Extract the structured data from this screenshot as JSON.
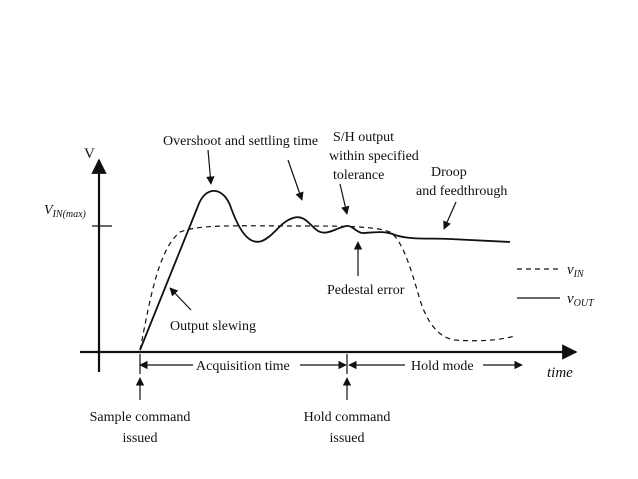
{
  "axes": {
    "y_label": "V",
    "x_label": "time",
    "vin_max_main": "V",
    "vin_max_sub": "IN(max)"
  },
  "annotations": {
    "overshoot": "Overshoot and settling time",
    "sh_line1": "S/H output",
    "sh_line2": "within specified",
    "sh_line3": "tolerance",
    "droop_line1": "Droop",
    "droop_line2": "and feedthrough",
    "pedestal": "Pedestal error",
    "slewing": "Output slewing"
  },
  "intervals": {
    "acquisition": "Acquisition time",
    "hold": "Hold mode"
  },
  "events": {
    "sample_line1": "Sample command",
    "sample_line2": "issued",
    "hold_line1": "Hold command",
    "hold_line2": "issued"
  },
  "legend": {
    "vin_main": "v",
    "vin_sub": "IN",
    "vout_main": "v",
    "vout_sub": "OUT"
  },
  "signals": [
    {
      "name": "vIN",
      "style": "dashed"
    },
    {
      "name": "vOUT",
      "style": "solid"
    }
  ]
}
